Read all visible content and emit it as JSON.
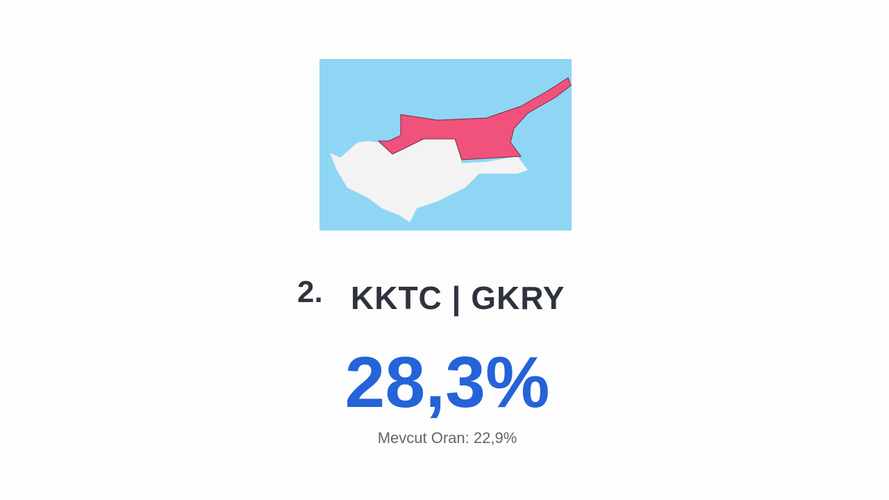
{
  "map": {
    "sea_color": "#8fd6f5",
    "north_color": "#f0527c",
    "south_color": "#f3f3f3"
  },
  "rank": "2.",
  "title": "KKTC | GKRY",
  "value": "28,3%",
  "current_rate": "Mevcut Oran: 22,9%",
  "value_color": "#2463d8"
}
